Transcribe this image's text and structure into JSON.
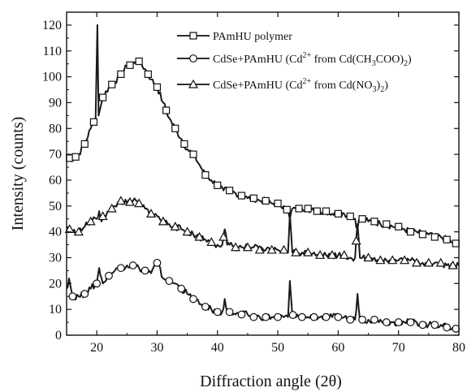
{
  "chart_data": {
    "type": "line",
    "xlabel": "Diffraction angle (2θ)",
    "ylabel": "Intensity (counts)",
    "xlim": [
      15,
      80
    ],
    "ylim": [
      0,
      125
    ],
    "xticks": [
      20,
      30,
      40,
      50,
      60,
      70,
      80
    ],
    "yticks": [
      0,
      10,
      20,
      30,
      40,
      50,
      60,
      70,
      80,
      90,
      100,
      110,
      120
    ],
    "grid": false,
    "legend_position": "top-right",
    "series": [
      {
        "name": "PAmHU polymer",
        "marker": "square",
        "color": "#1a1a1a",
        "x": [
          15,
          16,
          17,
          18,
          19,
          19.8,
          20.1,
          20.3,
          20.6,
          21,
          22,
          23,
          24,
          25,
          26,
          27,
          28,
          29,
          30,
          31,
          32,
          33,
          34,
          35,
          36,
          37,
          38,
          39,
          40,
          41,
          42,
          43,
          44,
          45,
          46,
          47,
          48,
          49,
          50,
          51,
          51.7,
          52,
          52.4,
          53,
          54,
          55,
          56,
          57,
          58,
          59,
          60,
          61,
          62,
          62.8,
          63.2,
          63.6,
          64,
          65,
          66,
          67,
          68,
          69,
          70,
          71,
          72,
          73,
          74,
          75,
          76,
          77,
          78,
          79,
          80
        ],
        "y": [
          69,
          68,
          70,
          74,
          80,
          84,
          120,
          85,
          88,
          92,
          96,
          98,
          101,
          104,
          105,
          106,
          103,
          99,
          96,
          90,
          84,
          80,
          76,
          72,
          70,
          66,
          62,
          60,
          58,
          56,
          56,
          55,
          54,
          53,
          53,
          52,
          52,
          51,
          51,
          50,
          48,
          45,
          49,
          49,
          49,
          49,
          48,
          48,
          48,
          47,
          47,
          47,
          46,
          45,
          41,
          46,
          45,
          44,
          44,
          43,
          43,
          42,
          42,
          41,
          40,
          40,
          39,
          39,
          38,
          38,
          37,
          36,
          35
        ],
        "marker_x": [
          15.5,
          16.5,
          18,
          19.5,
          21,
          22.5,
          24,
          25.5,
          27,
          28.5,
          30,
          31.5,
          33,
          34.5,
          36,
          38,
          40,
          42,
          44,
          46,
          48,
          50,
          51.5,
          53.5,
          55,
          56.5,
          58,
          60,
          62,
          64,
          66,
          68,
          70,
          72,
          74,
          76,
          78,
          79.5
        ]
      },
      {
        "name": "CdSe+PAmHU (Cd²⁺ from Cd(CH₃COO)₂)",
        "marker": "circle",
        "color": "#1a1a1a",
        "x": [
          15,
          15.4,
          16,
          17,
          18,
          19,
          20,
          20.4,
          20.8,
          21,
          22,
          23,
          24,
          25,
          26,
          27,
          28,
          29,
          30,
          31,
          32,
          33,
          34,
          35,
          36,
          37,
          38,
          39,
          40,
          40.8,
          41.2,
          41.6,
          42,
          43,
          44,
          45,
          46,
          47,
          48,
          49,
          50,
          51,
          51.7,
          52,
          52.4,
          53,
          54,
          55,
          56,
          57,
          58,
          59,
          60,
          61,
          62,
          62.8,
          63.2,
          63.6,
          64,
          65,
          66,
          67,
          68,
          69,
          70,
          71,
          72,
          73,
          74,
          75,
          76,
          77,
          78,
          79,
          80
        ],
        "y": [
          18,
          22,
          15,
          15,
          16,
          18,
          20,
          26,
          22,
          20,
          23,
          25,
          26,
          27,
          27,
          26,
          25,
          24,
          28,
          22,
          21,
          20,
          18,
          16,
          14,
          12,
          11,
          10,
          9,
          9,
          14,
          9,
          9,
          8,
          8,
          8,
          7,
          7,
          7,
          7,
          7,
          7,
          7,
          21,
          8,
          7,
          7,
          7,
          7,
          7,
          7,
          7,
          7,
          7,
          6,
          6,
          16,
          6,
          6,
          6,
          6,
          6,
          5,
          5,
          5,
          5,
          5,
          5,
          4,
          4,
          4,
          4,
          3,
          3,
          2
        ],
        "marker_x": [
          16,
          18,
          20,
          22,
          24,
          26,
          28,
          30,
          32,
          34,
          36,
          38,
          40,
          42,
          44,
          46,
          48,
          50,
          52.5,
          54,
          56,
          58,
          60,
          62,
          64,
          66,
          68,
          70,
          72,
          74,
          76,
          78,
          79.5
        ]
      },
      {
        "name": "CdSe+PAmHU (Cd²⁺ from Cd(NO₃)₂)",
        "marker": "triangle",
        "color": "#1a1a1a",
        "x": [
          15,
          16,
          17,
          18,
          19,
          20,
          20.4,
          20.8,
          21,
          22,
          23,
          24,
          25,
          26,
          27,
          28,
          29,
          30,
          31,
          32,
          33,
          34,
          35,
          36,
          37,
          38,
          39,
          40,
          40.8,
          41.2,
          41.6,
          42,
          43,
          44,
          45,
          46,
          47,
          48,
          49,
          50,
          51,
          51.7,
          52,
          52.4,
          53,
          54,
          55,
          56,
          57,
          58,
          59,
          60,
          61,
          62,
          62.8,
          63.2,
          63.6,
          64,
          65,
          66,
          67,
          68,
          69,
          70,
          71,
          72,
          73,
          74,
          75,
          76,
          77,
          78,
          79,
          80
        ],
        "y": [
          42,
          40,
          40,
          42,
          44,
          45,
          48,
          44,
          46,
          48,
          50,
          52,
          51,
          52,
          51,
          49,
          47,
          46,
          44,
          43,
          42,
          41,
          40,
          39,
          38,
          37,
          36,
          35,
          35,
          41,
          35,
          35,
          34,
          34,
          34,
          34,
          33,
          33,
          33,
          33,
          33,
          32,
          47,
          32,
          32,
          32,
          32,
          32,
          31,
          31,
          31,
          31,
          31,
          30,
          30,
          43,
          30,
          30,
          30,
          30,
          29,
          29,
          29,
          29,
          29,
          29,
          28,
          28,
          28,
          28,
          28,
          27,
          27,
          27
        ],
        "marker_x": [
          15.5,
          17,
          19,
          21,
          22.5,
          24,
          25.5,
          27,
          29,
          31,
          33,
          35,
          37,
          39,
          41,
          43,
          45,
          47,
          49,
          51,
          53,
          55,
          57,
          59,
          61,
          63,
          65,
          67,
          69,
          71,
          73,
          75,
          77,
          79
        ]
      }
    ],
    "legend": [
      {
        "pre": "PAmHU polymer"
      },
      {
        "pre": "CdSe+PAmHU (Cd",
        "sup": "2+",
        "mid": " from Cd(CH",
        "sub1": "3",
        "mid2": "COO)",
        "sub2": "2",
        "post": ")"
      },
      {
        "pre": "CdSe+PAmHU (Cd",
        "sup": "2+",
        "mid": " from Cd(NO",
        "sub1": "3",
        "mid2": ")",
        "sub2": "2",
        "post": ")"
      }
    ]
  }
}
